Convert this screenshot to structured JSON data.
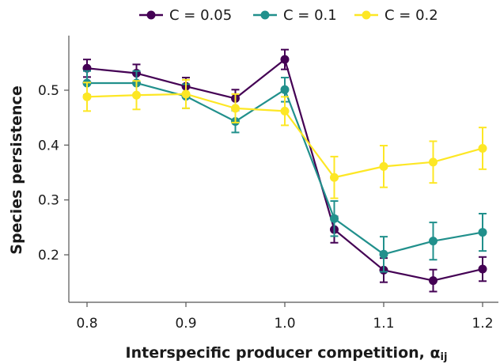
{
  "chart_data": {
    "type": "line",
    "title": "",
    "xlabel": "Interspecific producer competition, α",
    "xlabel_subscript": "ij",
    "ylabel": "Species persistence",
    "xlim": [
      0.775,
      1.225
    ],
    "ylim": [
      0.13,
      0.6
    ],
    "x_ticks": [
      0.8,
      0.9,
      1.0,
      1.1,
      1.2
    ],
    "x_tick_labels": [
      "0.8",
      "0.9",
      "1.0",
      "1.1",
      "1.2"
    ],
    "y_ticks": [
      0.2,
      0.3,
      0.4,
      0.5
    ],
    "y_tick_labels": [
      "0.2",
      "0.3",
      "0.4",
      "0.5"
    ],
    "grid": false,
    "legend_position": "top",
    "x": [
      0.8,
      0.85,
      0.9,
      0.95,
      1.0,
      1.05,
      1.1,
      1.15,
      1.2
    ],
    "series": [
      {
        "name": "C = 0.05",
        "color": "#440154",
        "values": [
          0.54,
          0.531,
          0.507,
          0.485,
          0.556,
          0.246,
          0.172,
          0.153,
          0.174
        ],
        "errors": [
          0.016,
          0.016,
          0.016,
          0.016,
          0.018,
          0.024,
          0.022,
          0.02,
          0.022
        ]
      },
      {
        "name": "C = 0.1",
        "color": "#21908c",
        "values": [
          0.513,
          0.513,
          0.489,
          0.443,
          0.501,
          0.266,
          0.201,
          0.225,
          0.241
        ],
        "errors": [
          0.022,
          0.022,
          0.022,
          0.02,
          0.022,
          0.032,
          0.032,
          0.034,
          0.034
        ]
      },
      {
        "name": "C = 0.2",
        "color": "#fde725",
        "values": [
          0.488,
          0.491,
          0.493,
          0.467,
          0.462,
          0.341,
          0.361,
          0.369,
          0.394
        ],
        "errors": [
          0.026,
          0.026,
          0.026,
          0.026,
          0.026,
          0.038,
          0.038,
          0.038,
          0.038
        ]
      }
    ]
  }
}
